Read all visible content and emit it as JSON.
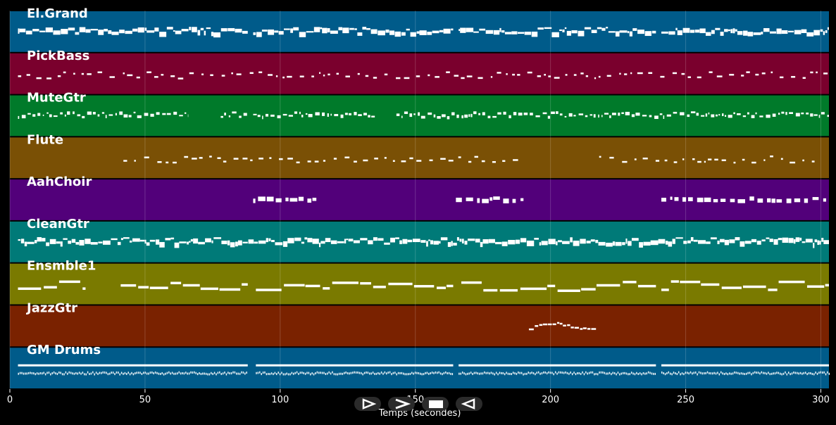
{
  "chart_data": {
    "type": "piano-roll",
    "xlabel": "Temps (secondes)",
    "xlim": [
      0,
      303
    ],
    "x_ticks": [
      0,
      50,
      100,
      150,
      200,
      250,
      300
    ],
    "grid": true,
    "tracks": [
      {
        "name": "El.Grand",
        "color": "#005b8a",
        "pattern": "dense",
        "segments": [
          [
            3,
            88
          ],
          [
            90,
            164
          ],
          [
            166,
            239
          ],
          [
            241,
            303
          ]
        ]
      },
      {
        "name": "PickBass",
        "color": "#7a002d",
        "pattern": "sparse",
        "segments": [
          [
            3,
            303
          ]
        ]
      },
      {
        "name": "MuteGtr",
        "color": "#007a2a",
        "pattern": "medium",
        "segments": [
          [
            3,
            66
          ],
          [
            78,
            88
          ],
          [
            90,
            135
          ],
          [
            143,
            303
          ]
        ]
      },
      {
        "name": "Flute",
        "color": "#7a5005",
        "pattern": "sparse",
        "segments": [
          [
            42,
            189
          ],
          [
            218,
            300
          ]
        ]
      },
      {
        "name": "AahChoir",
        "color": "#52007a",
        "pattern": "blocks",
        "segments": [
          [
            90,
            114
          ],
          [
            165,
            190
          ],
          [
            241,
            303
          ]
        ]
      },
      {
        "name": "CleanGtr",
        "color": "#007a78",
        "pattern": "dense",
        "segments": [
          [
            3,
            303
          ]
        ]
      },
      {
        "name": "Ensmble1",
        "color": "#7a7a00",
        "pattern": "long",
        "segments": [
          [
            3,
            28
          ],
          [
            41,
            88
          ],
          [
            91,
            164
          ],
          [
            167,
            239
          ],
          [
            241,
            303
          ]
        ]
      },
      {
        "name": "JazzGtr",
        "color": "#7a2200",
        "pattern": "melody",
        "segments": [
          [
            192,
            217
          ]
        ]
      },
      {
        "name": "GM Drums",
        "color": "#005b8a",
        "pattern": "drums",
        "segments": [
          [
            3,
            88
          ],
          [
            91,
            164
          ],
          [
            166,
            239
          ],
          [
            241,
            303
          ]
        ]
      }
    ]
  },
  "controls": {
    "play_label": "play",
    "forward_label": "forward",
    "stop_label": "stop",
    "back_label": "back"
  }
}
